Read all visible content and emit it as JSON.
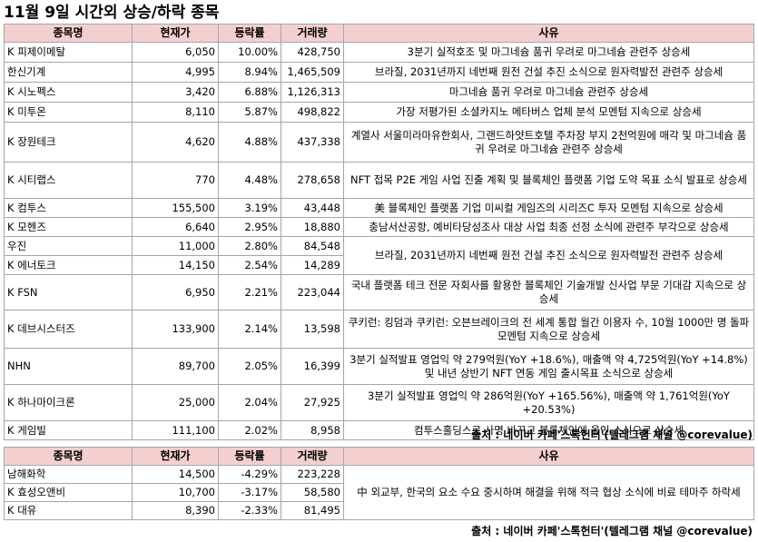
{
  "title": "11월 9일  시간외 상승/하락 종목",
  "headers": {
    "name": "종목명",
    "price": "현재가",
    "rate": "등락률",
    "volume": "거래량",
    "reason": "사유"
  },
  "rise_rows": [
    {
      "name": "K 피제이메탈",
      "price": "6,050",
      "rate": "10.00%",
      "volume": "428,750",
      "reason": "3분기 실적호조 및 마그네슘 품귀 우려로 마그네슘 관련주 상승세"
    },
    {
      "name": "  한신기계",
      "price": "4,995",
      "rate": "8.94%",
      "volume": "1,465,509",
      "reason": "브라질, 2031년까지 네번째 원전 건설 추진 소식으로 원자력발전 관련주 상승세"
    },
    {
      "name": "K 시노펙스",
      "price": "3,420",
      "rate": "6.88%",
      "volume": "1,126,313",
      "reason": "마그네슘 품귀 우려로 마그네슘 관련주 상승세"
    },
    {
      "name": "K 미투온",
      "price": "8,110",
      "rate": "5.87%",
      "volume": "498,822",
      "reason": "가장 저평가된 소셜카지노 메타버스 업체 분석 모멘텀 지속으로 상승세"
    },
    {
      "name": "K 장원테크",
      "price": "4,620",
      "rate": "4.88%",
      "volume": "437,338",
      "reason": "계열사 서울미라마유한회사, 그랜드하얏트호텔 주차장 부지 2천억원에 매각 및 마그네슘 품귀 우려로 마그네슘 관련주 상승세"
    },
    {
      "name": "K 시티랩스",
      "price": "770",
      "rate": "4.48%",
      "volume": "278,658",
      "reason": "NFT 접목 P2E 게임 사업 진출 계획 및 블록체인 플랫폼 기업 도약 목표 소식 발표로 상승세"
    },
    {
      "name": "K 컴투스",
      "price": "155,500",
      "rate": "3.19%",
      "volume": "43,448",
      "reason": "美 블록체인 플랫폼 기업 미씨컬 게임즈의 시리즈C 투자 모멘텀 지속으로 상승세"
    },
    {
      "name": "K 모헨즈",
      "price": "6,640",
      "rate": "2.95%",
      "volume": "18,880",
      "reason": "충남서산공항, 예비타당성조사 대상 사업 최종 선정 소식에 관련주 부각으로 상승세"
    },
    {
      "name": "  우진",
      "price": "11,000",
      "rate": "2.80%",
      "volume": "84,548",
      "reason": "브라질, 2031년까지 네번째 원전 건설 추진 소식으로 원자력발전 관련주 상승세"
    },
    {
      "name": "K 에너토크",
      "price": "14,150",
      "rate": "2.54%",
      "volume": "14,289",
      "reason": ""
    },
    {
      "name": "K FSN",
      "price": "6,950",
      "rate": "2.21%",
      "volume": "223,044",
      "reason": "국내 플랫폼 테크 전문 자회사를 활용한 블록체인 기술개발 신사업 부문 기대감 지속으로 상승세"
    },
    {
      "name": "K 데브시스터즈",
      "price": "133,900",
      "rate": "2.14%",
      "volume": "13,598",
      "reason": "쿠키런: 킹덤과 쿠키런: 오븐브레이크의 전 세계 통합 월간 이용자 수, 10월 1000만 명 돌파 모멘텀 지속으로 상승세"
    },
    {
      "name": "  NHN",
      "price": "89,700",
      "rate": "2.05%",
      "volume": "16,399",
      "reason": "3분기 실적발표 영업익 약 279억원(YoY +18.6%), 매출액 약 4,725억원(YoY +14.8%) 및 내년 상반기 NFT 연동 게임 출시목표 소식으로 상승세"
    },
    {
      "name": "K 하나마이크론",
      "price": "25,000",
      "rate": "2.04%",
      "volume": "27,925",
      "reason": "3분기 실적발표 영업익 약 286억원(YoY +165.56%), 매출액 약 1,761억원(YoY +20.53%)"
    },
    {
      "name": "K 게임빌",
      "price": "111,100",
      "rate": "2.02%",
      "volume": "8,958",
      "reason": "컴투스홀딩스로 사명 바꾸고 블록체인에 올인 소식으로 상승세"
    }
  ],
  "fall_rows": [
    {
      "name": "  남해화학",
      "price": "14,500",
      "rate": "-4.29%",
      "volume": "223,228",
      "reason": "中 외교부, 한국의 요소 수요 중시하며 해결을 위해 적극 협상 소식에 비료 테마주 하락세"
    },
    {
      "name": "K 효성오앤비",
      "price": "10,700",
      "rate": "-3.17%",
      "volume": "58,580"
    },
    {
      "name": "K 대유",
      "price": "8,390",
      "rate": "-2.33%",
      "volume": "81,495"
    }
  ],
  "source": "출처 : 네이버 카페'스톡헌터'(텔레그램 채널 @corevalue)"
}
